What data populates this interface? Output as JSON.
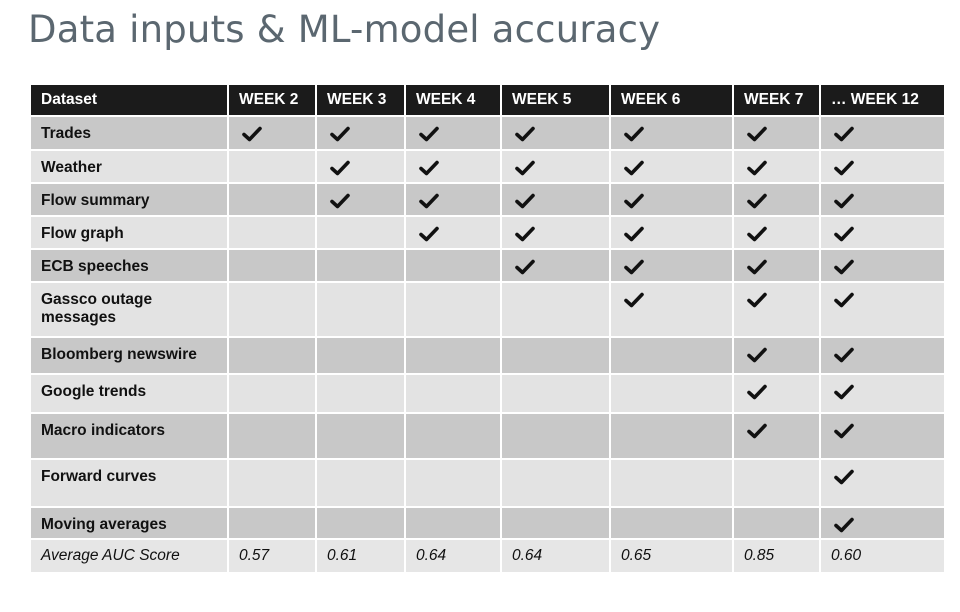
{
  "title": "Data inputs & ML-model accuracy",
  "table": {
    "header": {
      "dataset": "Dataset",
      "weeks": [
        "WEEK 2",
        "WEEK 3",
        "WEEK 4",
        "WEEK 5",
        "WEEK 6",
        "WEEK 7",
        "… WEEK 12"
      ]
    },
    "rows": [
      {
        "label": "Trades",
        "checks": [
          true,
          true,
          true,
          true,
          true,
          true,
          true
        ]
      },
      {
        "label": "Weather",
        "checks": [
          false,
          true,
          true,
          true,
          true,
          true,
          true
        ]
      },
      {
        "label": "Flow summary",
        "checks": [
          false,
          true,
          true,
          true,
          true,
          true,
          true
        ]
      },
      {
        "label": "Flow graph",
        "checks": [
          false,
          false,
          true,
          true,
          true,
          true,
          true
        ]
      },
      {
        "label": "ECB speeches",
        "checks": [
          false,
          false,
          false,
          true,
          true,
          true,
          true
        ]
      },
      {
        "label": "Gassco outage messages",
        "checks": [
          false,
          false,
          false,
          false,
          true,
          true,
          true
        ]
      },
      {
        "label": "Bloomberg newswire",
        "checks": [
          false,
          false,
          false,
          false,
          false,
          true,
          true
        ]
      },
      {
        "label": "Google trends",
        "checks": [
          false,
          false,
          false,
          false,
          false,
          true,
          true
        ]
      },
      {
        "label": "Macro indicators",
        "checks": [
          false,
          false,
          false,
          false,
          false,
          true,
          true
        ]
      },
      {
        "label": "Forward curves",
        "checks": [
          false,
          false,
          false,
          false,
          false,
          false,
          true
        ]
      },
      {
        "label": "Moving averages",
        "checks": [
          false,
          false,
          false,
          false,
          false,
          false,
          true
        ]
      }
    ],
    "footer": {
      "label": "Average AUC Score",
      "values": [
        "0.57",
        "0.61",
        "0.64",
        "0.64",
        "0.65",
        "0.85",
        "0.60"
      ]
    }
  },
  "colors": {
    "header_bg": "#1b1b1b",
    "row_dark": "#c8c8c8",
    "row_light": "#e3e3e3",
    "title": "#5b6770"
  },
  "icons": {
    "check": "checkmark-icon"
  }
}
